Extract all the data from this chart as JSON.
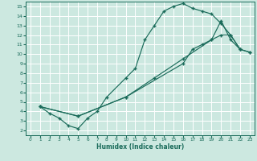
{
  "xlabel": "Humidex (Indice chaleur)",
  "bg_color": "#cce8e0",
  "grid_color": "#ffffff",
  "line_color": "#1a6b5a",
  "xlim": [
    -0.5,
    23.5
  ],
  "ylim": [
    1.5,
    15.5
  ],
  "xticks": [
    0,
    1,
    2,
    3,
    4,
    5,
    6,
    7,
    8,
    9,
    10,
    11,
    12,
    13,
    14,
    15,
    16,
    17,
    18,
    19,
    20,
    21,
    22,
    23
  ],
  "yticks": [
    2,
    3,
    4,
    5,
    6,
    7,
    8,
    9,
    10,
    11,
    12,
    13,
    14,
    15
  ],
  "line1_x": [
    1,
    2,
    3,
    4,
    5,
    6,
    7,
    8,
    10,
    11,
    12,
    13,
    14,
    15,
    16,
    17,
    18,
    19,
    20,
    21,
    22
  ],
  "line1_y": [
    4.5,
    3.8,
    3.3,
    2.5,
    2.2,
    3.3,
    4.0,
    5.5,
    7.5,
    8.5,
    11.5,
    13.0,
    14.5,
    15.0,
    15.3,
    14.8,
    14.5,
    14.2,
    13.2,
    12.0,
    10.5
  ],
  "line2_x": [
    1,
    5,
    10,
    13,
    16,
    19,
    20,
    21,
    22,
    23
  ],
  "line2_y": [
    4.5,
    3.5,
    5.5,
    7.5,
    9.5,
    11.5,
    13.5,
    11.5,
    10.5,
    10.2
  ],
  "line3_x": [
    1,
    5,
    10,
    16,
    17,
    18,
    19,
    20,
    21,
    22,
    23
  ],
  "line3_y": [
    4.5,
    3.5,
    5.5,
    9.0,
    10.5,
    11.0,
    11.5,
    12.0,
    12.0,
    10.5,
    10.2
  ]
}
